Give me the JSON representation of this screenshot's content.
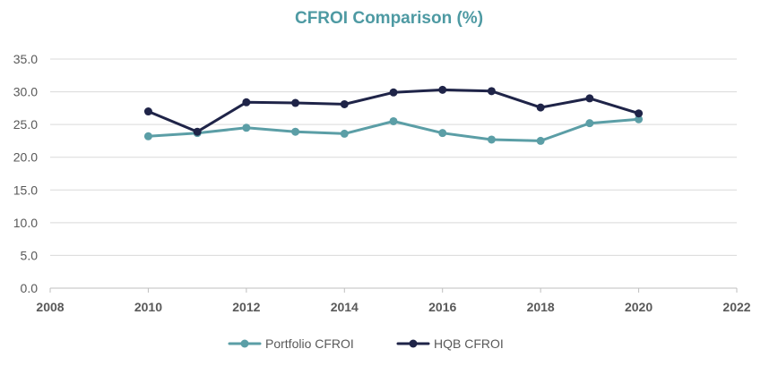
{
  "chart_data": {
    "type": "scatter",
    "title": "CFROI Comparison (%)",
    "xlabel": "",
    "ylabel": "",
    "xlim": [
      2008,
      2022
    ],
    "ylim": [
      0,
      35
    ],
    "x_ticks": [
      "2008",
      "2010",
      "2012",
      "2014",
      "2016",
      "2018",
      "2020",
      "2022"
    ],
    "y_ticks": [
      "0.0",
      "5.0",
      "10.0",
      "15.0",
      "20.0",
      "25.0",
      "30.0",
      "35.0"
    ],
    "grid": "horizontal",
    "legend_position": "bottom",
    "series": [
      {
        "name": "Portfolio CFROI",
        "color": "#5b9ea6",
        "marker": "circle",
        "line": true,
        "x": [
          2010,
          2011,
          2012,
          2013,
          2014,
          2015,
          2016,
          2017,
          2018,
          2019,
          2020
        ],
        "y": [
          23.2,
          23.7,
          24.5,
          23.9,
          23.6,
          25.5,
          23.7,
          22.7,
          22.5,
          25.2,
          25.8
        ]
      },
      {
        "name": "HQB CFROI",
        "color": "#1f2448",
        "marker": "circle",
        "line": true,
        "x": [
          2010,
          2011,
          2012,
          2013,
          2014,
          2015,
          2016,
          2017,
          2018,
          2019,
          2020
        ],
        "y": [
          27.0,
          23.9,
          28.4,
          28.3,
          28.1,
          29.9,
          30.3,
          30.1,
          27.6,
          29.0,
          26.7
        ]
      }
    ]
  }
}
